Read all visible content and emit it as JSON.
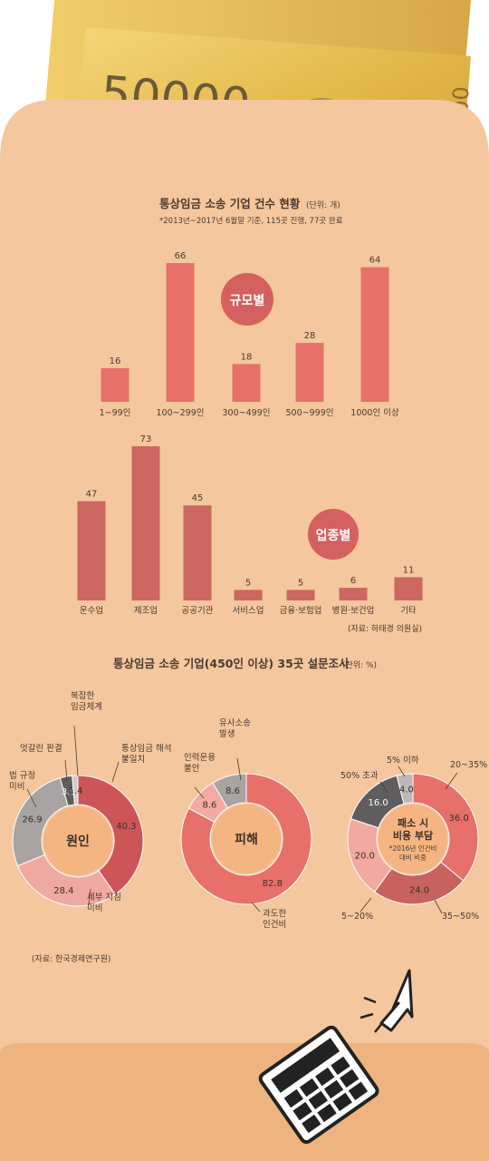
{
  "banknote": {
    "denomination": "50000",
    "serial_fragment": "0 A",
    "serial_fragment2": "000 A"
  },
  "chart1": {
    "title": "통상임금 소송 기업 건수 현황",
    "unit": "(단위: 개)",
    "subtitle": "*2013년~2017년 6월말 기준, 115곳 진행, 77곳 완료"
  },
  "chart_data": [
    {
      "type": "bar",
      "badge": "규모별",
      "categories": [
        "1~99인",
        "100~299인",
        "300~499인",
        "500~999인",
        "1000인 이상"
      ],
      "values": [
        16,
        66,
        18,
        28,
        64
      ],
      "ylim": [
        0,
        66
      ],
      "color": "#e8706a"
    },
    {
      "type": "bar",
      "badge": "업종별",
      "categories": [
        "운수업",
        "제조업",
        "공공기관",
        "서비스업",
        "금융·보험업",
        "병원·보건업",
        "기타"
      ],
      "values": [
        47,
        73,
        45,
        5,
        5,
        6,
        11
      ],
      "ylim": [
        0,
        73
      ],
      "color": "#cc6762",
      "source": "(자료: 하태경 의원실)"
    },
    {
      "type": "pie",
      "center_label": "원인",
      "segments": [
        {
          "label": "통상임금 해석 불일치",
          "value": 40.3,
          "display": "40.3",
          "color": "#cd5457"
        },
        {
          "label": "세부 지침 미비",
          "value": 28.4,
          "display": "28.4",
          "color": "#f0a8a2"
        },
        {
          "label": "법 규정 미비",
          "value": 26.9,
          "display": "26.9",
          "color": "#a8a4a3"
        },
        {
          "label": "엇갈린 판결",
          "value": 3.0,
          "display": "3.0",
          "color": "#5f5d5e"
        },
        {
          "label": "복잡한 임금체계",
          "value": 1.4,
          "display": "1.4",
          "color": "#cfcacc"
        }
      ]
    },
    {
      "type": "pie",
      "center_label": "피해",
      "segments": [
        {
          "label": "과도한 인건비",
          "value": 82.8,
          "display": "82.8",
          "color": "#e8706a"
        },
        {
          "label": "인력운용 불안",
          "value": 8.6,
          "display": "8.6",
          "color": "#f3a9a4"
        },
        {
          "label": "유사소송 발생",
          "value": 8.6,
          "display": "8.6",
          "color": "#a8a4a3"
        }
      ]
    },
    {
      "type": "pie",
      "center_label": "패소 시 비용 부담",
      "center_note": "*2016년 인건비 대비 비중",
      "segments": [
        {
          "label": "20~35%",
          "value": 36.0,
          "display": "36.0",
          "color": "#e8706a"
        },
        {
          "label": "35~50%",
          "value": 24.0,
          "display": "24.0",
          "color": "#c8625f"
        },
        {
          "label": "5~20%",
          "value": 20.0,
          "display": "20.0",
          "color": "#f1a9a2"
        },
        {
          "label": "50% 초과",
          "value": 16.0,
          "display": "16.0",
          "color": "#5f5d5e"
        },
        {
          "label": "5% 이하",
          "value": 4.0,
          "display": "4.0",
          "color": "#bdb8b7"
        }
      ]
    }
  ],
  "section2": {
    "title": "통상임금 소송 기업(450인 이상) 35곳 설문조사",
    "unit": "(단위: %)",
    "source": "(자료: 한국경제연구원)"
  },
  "colors": {
    "envelope": "#f5c79e",
    "envelope_pocket": "#edb47f",
    "badge": "#d4615f",
    "pie_center": "#f5b582"
  }
}
